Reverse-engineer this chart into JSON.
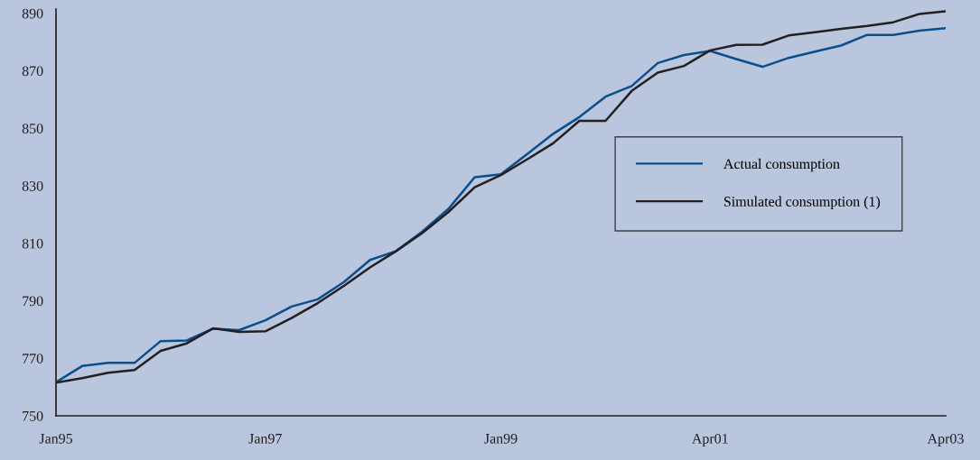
{
  "chart_data": {
    "type": "line",
    "categories": [
      "Jan95",
      null,
      null,
      null,
      null,
      null,
      null,
      null,
      "Jan97",
      null,
      null,
      null,
      null,
      null,
      null,
      null,
      null,
      "Jan99",
      null,
      null,
      null,
      null,
      null,
      null,
      null,
      "Apr01",
      null,
      null,
      null,
      null,
      null,
      null,
      null,
      null,
      "Apr03"
    ],
    "series": [
      {
        "name": "Actual consumption",
        "color": "#0a4f8c",
        "values": [
          761.7,
          767.3,
          768.4,
          768.4,
          776.0,
          776.2,
          780.3,
          779.8,
          783.2,
          788.0,
          790.5,
          796.5,
          804.2,
          807.3,
          814.1,
          822.0,
          833.0,
          834.0,
          841.0,
          848.1,
          853.9,
          861.0,
          864.7,
          872.7,
          875.5,
          876.9,
          874.1,
          871.4,
          874.5,
          876.7,
          878.8,
          882.5,
          882.5,
          884.0,
          884.8
        ]
      },
      {
        "name": "Simulated consumption (1)",
        "color": "#231f20",
        "values": [
          761.5,
          763.1,
          765.0,
          765.9,
          772.6,
          775.2,
          780.4,
          779.2,
          779.4,
          784.0,
          789.2,
          795.2,
          801.6,
          807.3,
          813.6,
          820.9,
          829.5,
          833.7,
          839.2,
          844.8,
          852.6,
          852.6,
          863.0,
          869.4,
          871.7,
          877.1,
          879.0,
          879.1,
          882.3,
          883.4,
          884.6,
          885.6,
          886.9,
          889.8,
          890.7
        ]
      }
    ],
    "ylim": [
      750,
      891.5
    ],
    "yticks": [
      750,
      770,
      790,
      810,
      830,
      850,
      870,
      890
    ],
    "grid": false,
    "legend": "center right",
    "marker": "none",
    "line_style": "solid"
  }
}
